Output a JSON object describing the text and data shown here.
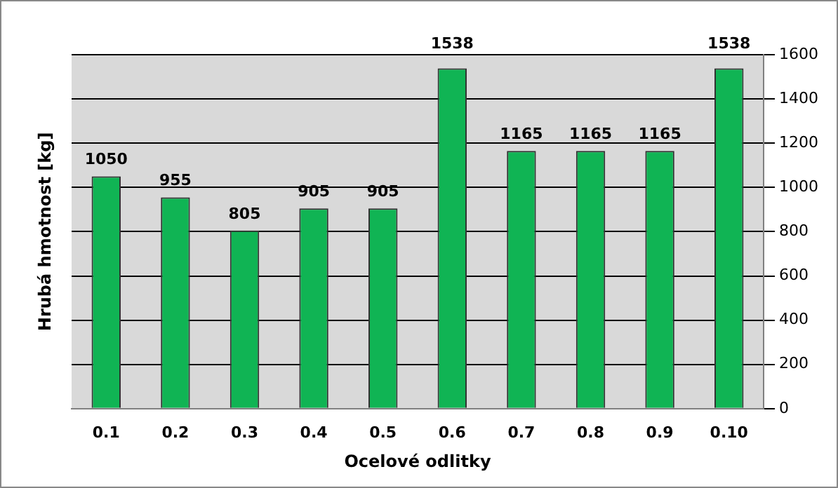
{
  "chart_data": {
    "type": "bar",
    "xlabel": "Ocelové odlitky",
    "ylabel": "Hrubá hmotnost [kg]",
    "categories": [
      "0.1",
      "0.2",
      "0.3",
      "0.4",
      "0.5",
      "0.6",
      "0.7",
      "0.8",
      "0.9",
      "0.10"
    ],
    "values": [
      1050,
      955,
      805,
      905,
      905,
      1538,
      1165,
      1165,
      1165,
      1538
    ],
    "color": "#10b454",
    "ylim": [
      0,
      1600
    ],
    "yticks": [
      0,
      200,
      400,
      600,
      800,
      1000,
      1200,
      1400,
      1600
    ],
    "grid": "y",
    "data_labels": true,
    "legend": false
  }
}
